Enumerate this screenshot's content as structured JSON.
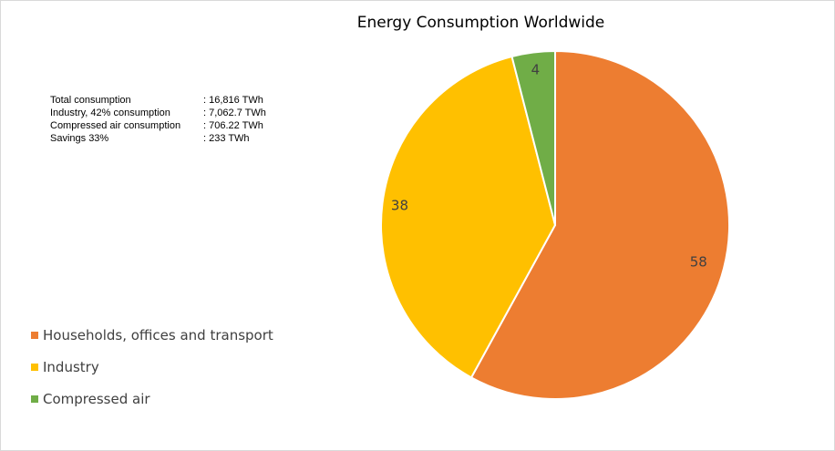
{
  "chart_data": {
    "type": "pie",
    "title": "Energy Consumption Worldwide",
    "categories": [
      "Households, offices and transport",
      "Industry",
      "Compressed air"
    ],
    "values": [
      58,
      38,
      4
    ],
    "data_labels": [
      "58",
      "38",
      "4"
    ],
    "colors": [
      "#ED7D31",
      "#FFC000",
      "#70AD47"
    ],
    "legend_position": "left",
    "annotations": [
      {
        "label": "Total consumption",
        "value": ": 16,816 TWh"
      },
      {
        "label": "Industry, 42% consumption",
        "value": ": 7,062.7 TWh"
      },
      {
        "label": "Compressed air consumption",
        "value": ": 706.22 TWh"
      },
      {
        "label": "Savings 33%",
        "value": ": 233 TWh"
      }
    ]
  }
}
